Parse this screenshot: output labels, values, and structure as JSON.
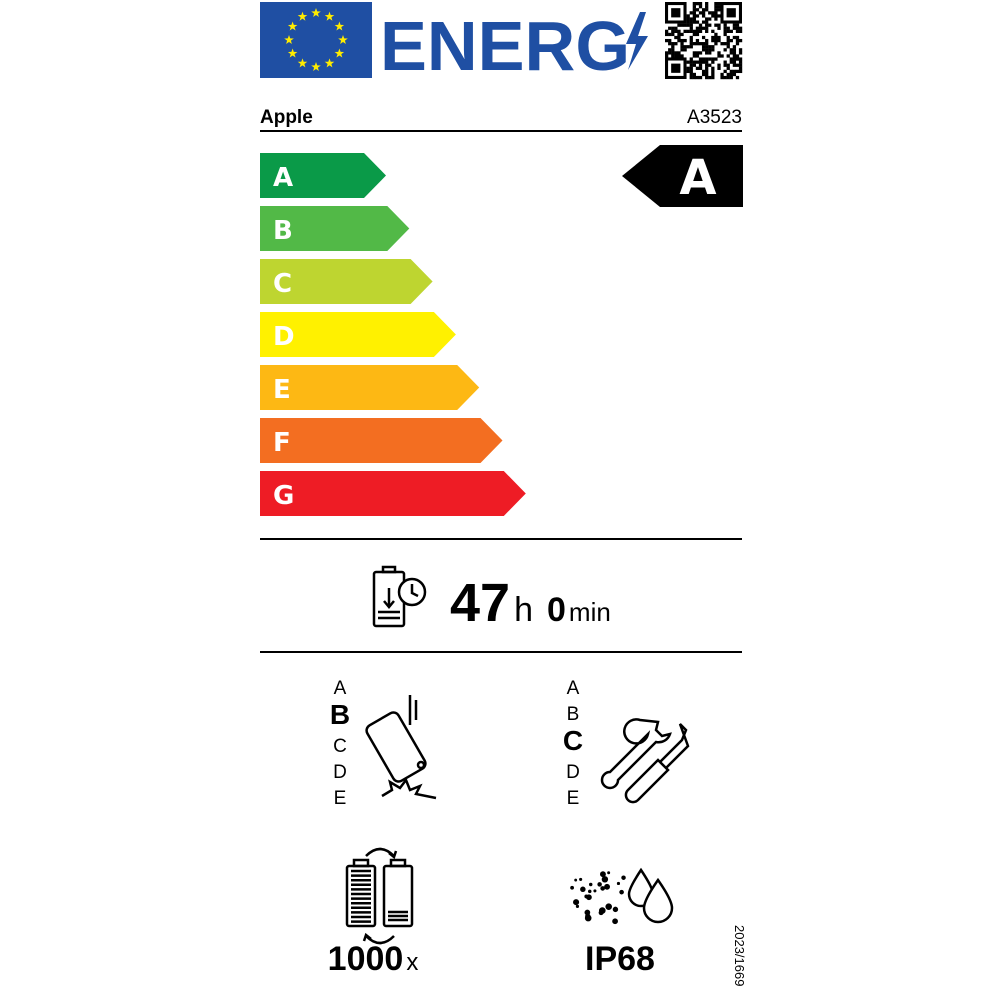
{
  "header": {
    "title": "ENERG",
    "supplier": "Apple",
    "model": "A3523"
  },
  "scale": {
    "classes": [
      "A",
      "B",
      "C",
      "D",
      "E",
      "F",
      "G"
    ],
    "colors": [
      "#0a9a48",
      "#52b947",
      "#bed530",
      "#fff100",
      "#fdb814",
      "#f36e21",
      "#ee1c25"
    ],
    "rating": "A"
  },
  "battery_endurance": {
    "hours": 47,
    "hours_unit": "h",
    "minutes": 0,
    "minutes_unit": "min"
  },
  "drop_resistance": {
    "classes": [
      "A",
      "B",
      "C",
      "D",
      "E"
    ],
    "rating_index": 1
  },
  "repairability": {
    "classes": [
      "A",
      "B",
      "C",
      "D",
      "E"
    ],
    "rating_index": 2
  },
  "battery_cycles": {
    "value": 1000,
    "unit": "x"
  },
  "ingress_protection": "IP68",
  "regulation": "2023/1669"
}
